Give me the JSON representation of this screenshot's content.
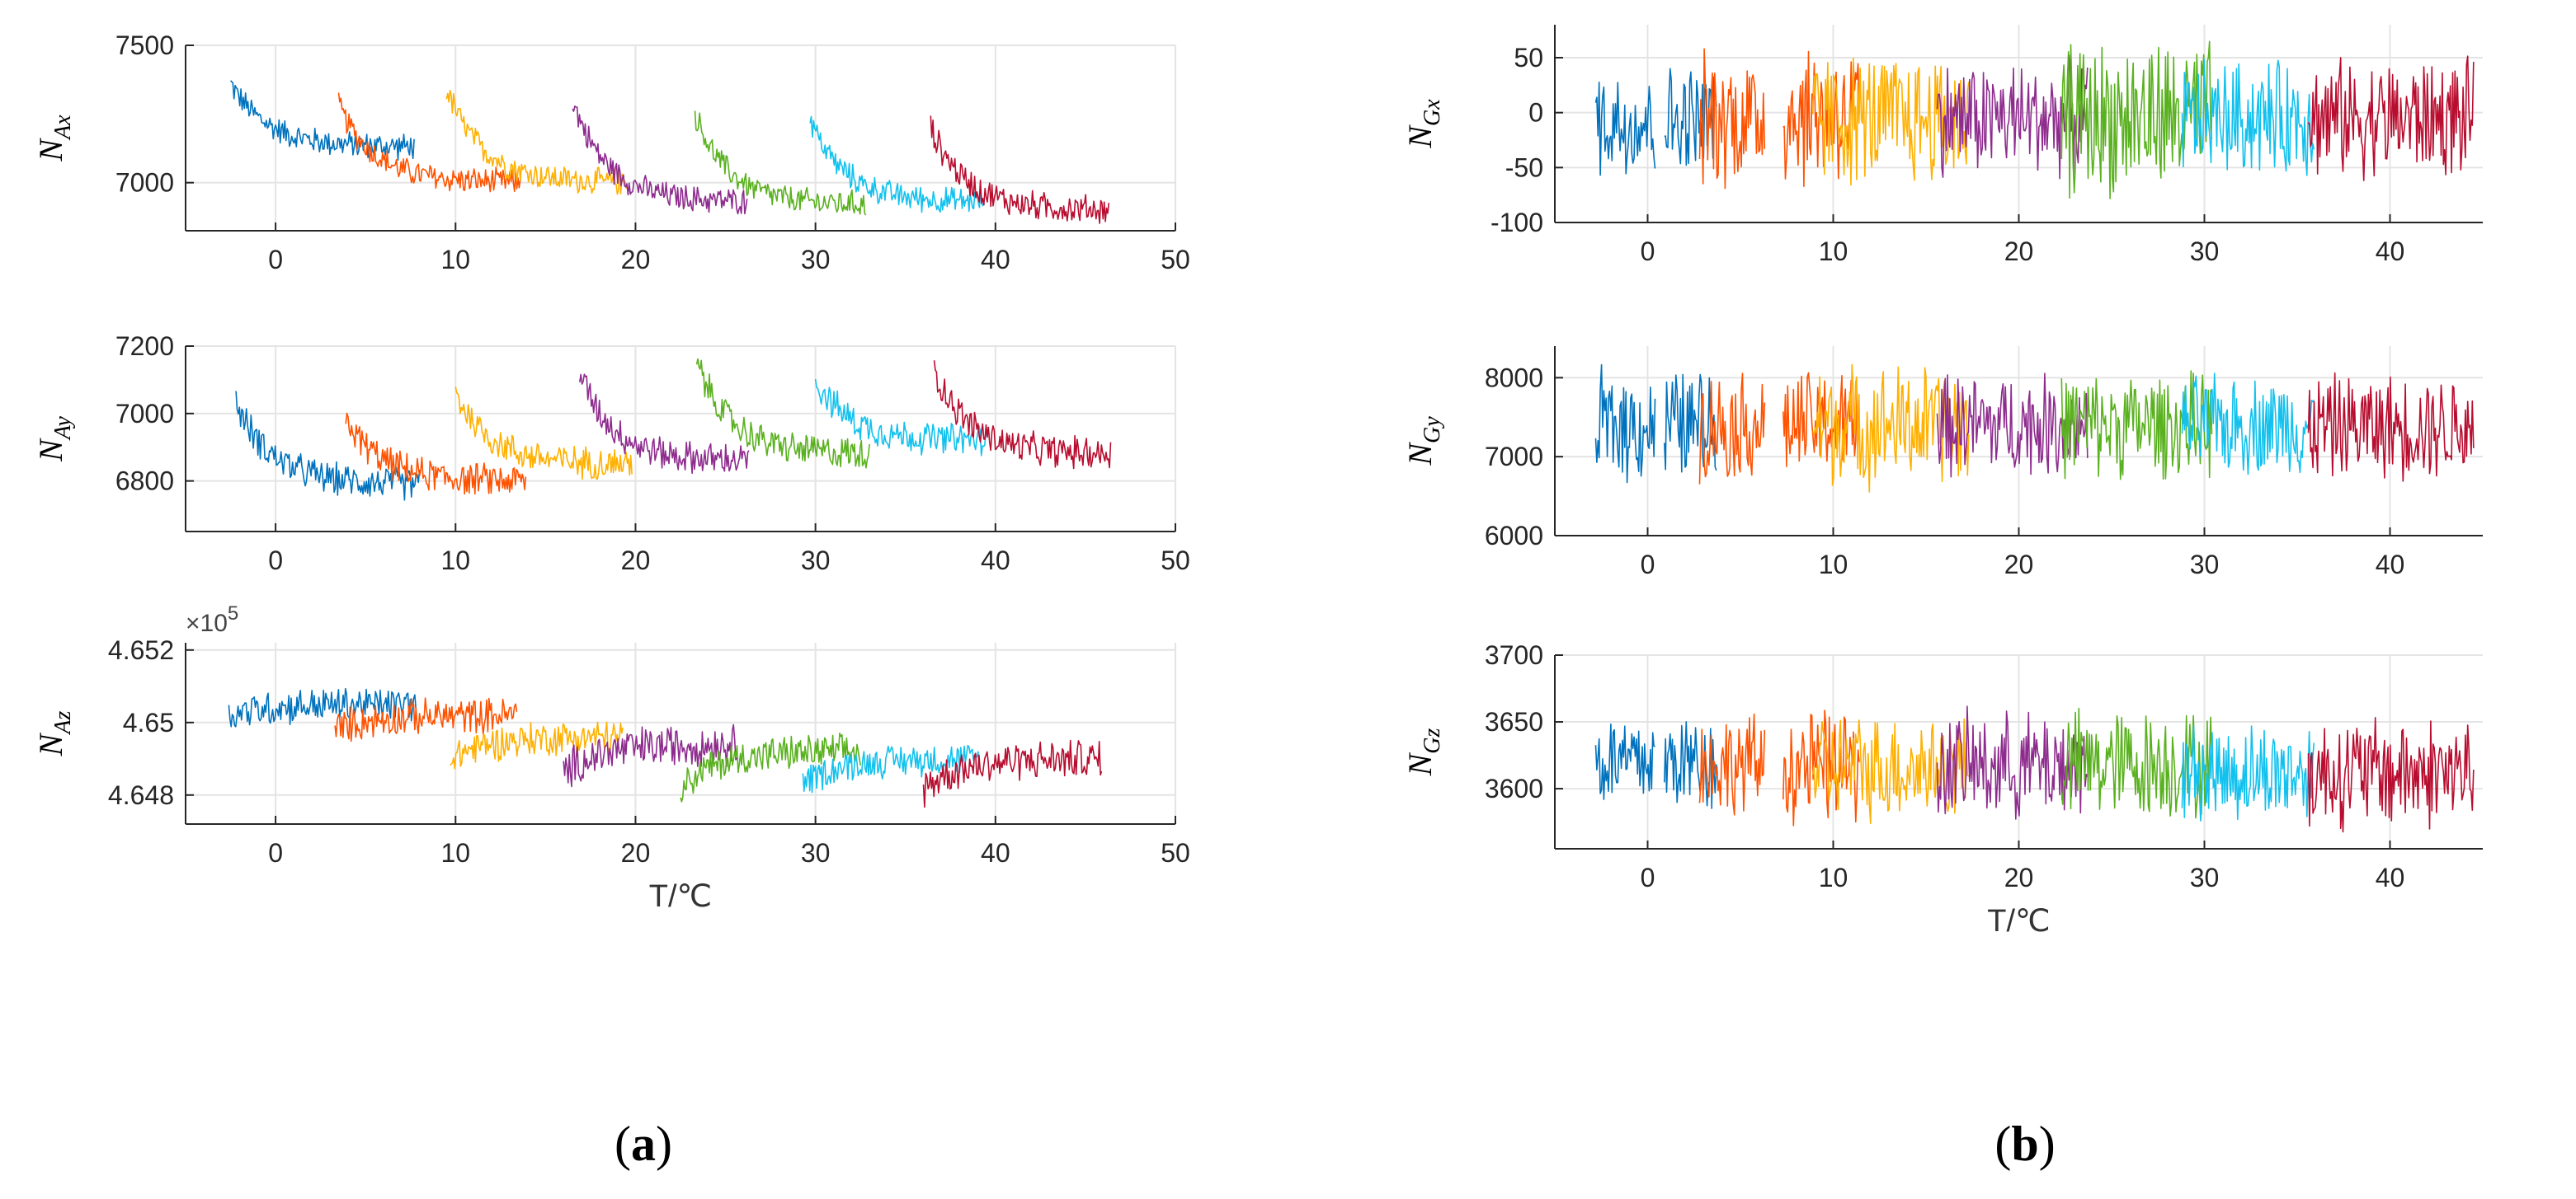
{
  "panel_labels": {
    "a": {
      "open": "(",
      "letter": "a",
      "close": ")"
    },
    "b": {
      "open": "(",
      "letter": "b",
      "close": ")"
    }
  },
  "colors": [
    "#0072BD",
    "#FF5200",
    "#FFB000",
    "#8E2C8E",
    "#5AB11F",
    "#12C1EE",
    "#B80D2F"
  ],
  "chart_data": [
    {
      "id": "NAx",
      "type": "line",
      "panel": "a",
      "ylabel": {
        "main": "N",
        "sub": "Ax"
      },
      "xlabel": "",
      "multiplier": "",
      "xlim": [
        -5,
        50
      ],
      "ylim": [
        6825,
        7500
      ],
      "xticks": [
        0,
        10,
        20,
        30,
        40,
        50
      ],
      "yticks": [
        {
          "v": 7000,
          "label": "7000"
        },
        {
          "v": 7500,
          "label": "7500"
        }
      ],
      "segments": [
        {
          "x0": -2.5,
          "x1": 7.7,
          "start": 7360,
          "end": 7130,
          "noise": 55
        },
        {
          "x0": 3.5,
          "x1": 13.6,
          "start": 7280,
          "end": 7000,
          "noise": 55
        },
        {
          "x0": 9.5,
          "x1": 19.5,
          "start": 7340,
          "end": 7000,
          "noise": 55
        },
        {
          "x0": 16.5,
          "x1": 26.2,
          "start": 7300,
          "end": 6930,
          "noise": 55
        },
        {
          "x0": 23.3,
          "x1": 32.8,
          "start": 7250,
          "end": 6920,
          "noise": 55
        },
        {
          "x0": 29.7,
          "x1": 39.3,
          "start": 7230,
          "end": 6930,
          "noise": 55
        },
        {
          "x0": 36.4,
          "x1": 46.3,
          "start": 7200,
          "end": 6900,
          "noise": 60
        }
      ]
    },
    {
      "id": "NAy",
      "type": "line",
      "panel": "a",
      "ylabel": {
        "main": "N",
        "sub": "Ay"
      },
      "xlabel": "",
      "multiplier": "",
      "xlim": [
        -5,
        50
      ],
      "ylim": [
        6650,
        7200
      ],
      "xticks": [
        0,
        10,
        20,
        30,
        40,
        50
      ],
      "yticks": [
        {
          "v": 6800,
          "label": "6800"
        },
        {
          "v": 7000,
          "label": "7000"
        },
        {
          "v": 7200,
          "label": "7200"
        }
      ],
      "segments": [
        {
          "x0": -2.2,
          "x1": 8.0,
          "start": 7030,
          "end": 6790,
          "noise": 55
        },
        {
          "x0": 3.9,
          "x1": 13.9,
          "start": 6980,
          "end": 6800,
          "noise": 55
        },
        {
          "x0": 10.0,
          "x1": 19.8,
          "start": 7060,
          "end": 6850,
          "noise": 55
        },
        {
          "x0": 16.9,
          "x1": 26.3,
          "start": 7120,
          "end": 6860,
          "noise": 55
        },
        {
          "x0": 23.4,
          "x1": 33.0,
          "start": 7150,
          "end": 6880,
          "noise": 55
        },
        {
          "x0": 30.0,
          "x1": 39.6,
          "start": 7100,
          "end": 6920,
          "noise": 55
        },
        {
          "x0": 36.6,
          "x1": 46.4,
          "start": 7130,
          "end": 6880,
          "noise": 55
        }
      ]
    },
    {
      "id": "NAz",
      "type": "line",
      "panel": "a",
      "ylabel": {
        "main": "N",
        "sub": "Az"
      },
      "xlabel": "T/℃",
      "multiplier": "×10",
      "multiplier_exp": "5",
      "xlim": [
        -5,
        50
      ],
      "ylim": [
        4.6472,
        4.6522
      ],
      "xticks": [
        0,
        10,
        20,
        30,
        40,
        50
      ],
      "yticks": [
        {
          "v": 4.648,
          "label": "4.648"
        },
        {
          "v": 4.65,
          "label": "4.65"
        },
        {
          "v": 4.652,
          "label": "4.652"
        }
      ],
      "segments": [
        {
          "x0": -2.6,
          "x1": 7.8,
          "start": 4.6502,
          "end": 4.6505,
          "noise": 0.00055
        },
        {
          "x0": 3.3,
          "x1": 13.4,
          "start": 4.6498,
          "end": 4.6502,
          "noise": 0.00055
        },
        {
          "x0": 9.7,
          "x1": 19.3,
          "start": 4.649,
          "end": 4.6496,
          "noise": 0.00055
        },
        {
          "x0": 16.0,
          "x1": 25.7,
          "start": 4.6486,
          "end": 4.6494,
          "noise": 0.00065
        },
        {
          "x0": 22.5,
          "x1": 32.5,
          "start": 4.6482,
          "end": 4.6492,
          "noise": 0.00055
        },
        {
          "x0": 29.3,
          "x1": 39.1,
          "start": 4.6483,
          "end": 4.649,
          "noise": 0.0005
        },
        {
          "x0": 36.0,
          "x1": 45.9,
          "start": 4.6482,
          "end": 4.649,
          "noise": 0.0006
        }
      ]
    },
    {
      "id": "NGx",
      "type": "line",
      "panel": "b",
      "ylabel": {
        "main": "N",
        "sub": "Gx"
      },
      "xlabel": "",
      "multiplier": "",
      "xlim": [
        -5,
        45
      ],
      "ylim": [
        -100,
        80
      ],
      "xticks": [
        0,
        10,
        20,
        30,
        40
      ],
      "yticks": [
        {
          "v": -100,
          "label": "-100"
        },
        {
          "v": -50,
          "label": "-50"
        },
        {
          "v": 0,
          "label": "0"
        },
        {
          "v": 50,
          "label": "50"
        }
      ],
      "segments": [
        {
          "x0": -2.8,
          "x1": 0.4,
          "start": -8,
          "end": -8,
          "noise": 58
        },
        {
          "x0": 0.9,
          "x1": 3.7,
          "start": -8,
          "end": -8,
          "noise": 58
        },
        {
          "x0": 2.8,
          "x1": 6.3,
          "start": -5,
          "end": -5,
          "noise": 70
        },
        {
          "x0": 7.3,
          "x1": 11.4,
          "start": -2,
          "end": -2,
          "noise": 75
        },
        {
          "x0": 8.9,
          "x1": 17.3,
          "start": -6,
          "end": -6,
          "noise": 68
        },
        {
          "x0": 15.6,
          "x1": 23.7,
          "start": -5,
          "end": -5,
          "noise": 58
        },
        {
          "x0": 22.3,
          "x1": 30.4,
          "start": -5,
          "end": -5,
          "noise": 80
        },
        {
          "x0": 28.8,
          "x1": 35.9,
          "start": -5,
          "end": -5,
          "noise": 58
        },
        {
          "x0": 35.6,
          "x1": 44.5,
          "start": -5,
          "end": -5,
          "noise": 60
        }
      ],
      "segment_colors": [
        0,
        0,
        1,
        1,
        2,
        3,
        4,
        5,
        6
      ]
    },
    {
      "id": "NGy",
      "type": "line",
      "panel": "b",
      "ylabel": {
        "main": "N",
        "sub": "Gy"
      },
      "xlabel": "",
      "multiplier": "",
      "xlim": [
        -5,
        45
      ],
      "ylim": [
        6000,
        8400
      ],
      "xticks": [
        0,
        10,
        20,
        30,
        40
      ],
      "yticks": [
        {
          "v": 6000,
          "label": "6000"
        },
        {
          "v": 7000,
          "label": "7000"
        },
        {
          "v": 8000,
          "label": "8000"
        }
      ],
      "segments": [
        {
          "x0": -2.8,
          "x1": 0.4,
          "start": 7400,
          "end": 7400,
          "noise": 800
        },
        {
          "x0": 0.9,
          "x1": 3.7,
          "start": 7400,
          "end": 7400,
          "noise": 800
        },
        {
          "x0": 2.8,
          "x1": 6.3,
          "start": 7400,
          "end": 7400,
          "noise": 760
        },
        {
          "x0": 7.3,
          "x1": 11.4,
          "start": 7400,
          "end": 7400,
          "noise": 760
        },
        {
          "x0": 8.9,
          "x1": 17.3,
          "start": 7400,
          "end": 7400,
          "noise": 860
        },
        {
          "x0": 15.6,
          "x1": 23.7,
          "start": 7400,
          "end": 7400,
          "noise": 720
        },
        {
          "x0": 22.3,
          "x1": 30.4,
          "start": 7400,
          "end": 7400,
          "noise": 740
        },
        {
          "x0": 28.8,
          "x1": 35.9,
          "start": 7400,
          "end": 7400,
          "noise": 700
        },
        {
          "x0": 35.6,
          "x1": 44.5,
          "start": 7380,
          "end": 7380,
          "noise": 740
        }
      ],
      "segment_colors": [
        0,
        0,
        1,
        1,
        2,
        3,
        4,
        5,
        6
      ]
    },
    {
      "id": "NGz",
      "type": "line",
      "panel": "b",
      "ylabel": {
        "main": "N",
        "sub": "Gz"
      },
      "xlabel": "T/℃",
      "multiplier": "",
      "xlim": [
        -5,
        45
      ],
      "ylim": [
        3555,
        3700
      ],
      "xticks": [
        0,
        10,
        20,
        30,
        40
      ],
      "yticks": [
        {
          "v": 3600,
          "label": "3600"
        },
        {
          "v": 3650,
          "label": "3650"
        },
        {
          "v": 3700,
          "label": "3700"
        }
      ],
      "segments": [
        {
          "x0": -2.8,
          "x1": 0.4,
          "start": 3620,
          "end": 3620,
          "noise": 40
        },
        {
          "x0": 0.9,
          "x1": 3.7,
          "start": 3620,
          "end": 3620,
          "noise": 42
        },
        {
          "x0": 2.8,
          "x1": 6.3,
          "start": 3618,
          "end": 3618,
          "noise": 42
        },
        {
          "x0": 7.3,
          "x1": 11.4,
          "start": 3616,
          "end": 3616,
          "noise": 48
        },
        {
          "x0": 8.9,
          "x1": 17.3,
          "start": 3616,
          "end": 3616,
          "noise": 45
        },
        {
          "x0": 15.6,
          "x1": 23.7,
          "start": 3617,
          "end": 3617,
          "noise": 45
        },
        {
          "x0": 22.3,
          "x1": 30.4,
          "start": 3618,
          "end": 3618,
          "noise": 46
        },
        {
          "x0": 28.8,
          "x1": 35.9,
          "start": 3612,
          "end": 3612,
          "noise": 42
        },
        {
          "x0": 35.6,
          "x1": 44.5,
          "start": 3612,
          "end": 3612,
          "noise": 48
        }
      ],
      "segment_colors": [
        0,
        0,
        1,
        1,
        2,
        3,
        4,
        5,
        6
      ]
    }
  ]
}
